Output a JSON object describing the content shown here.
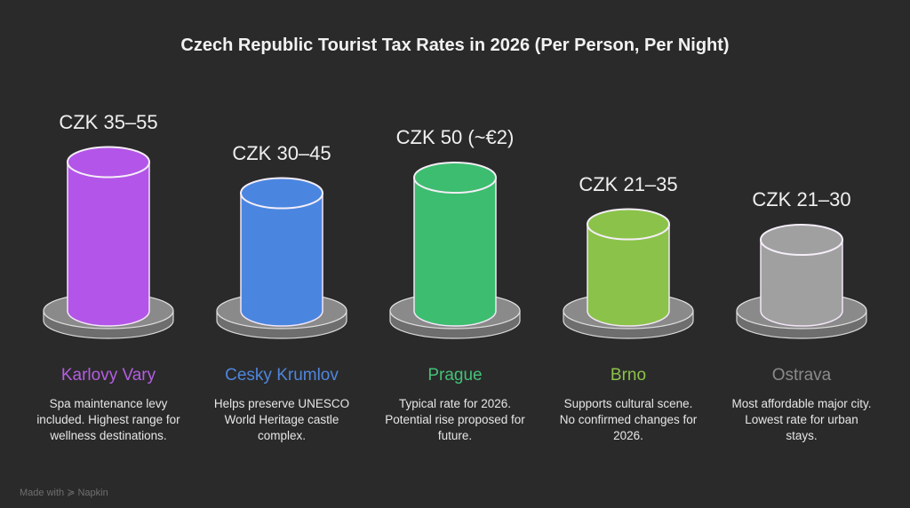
{
  "chart_data": {
    "type": "bar",
    "title": "Czech Republic Tourist Tax Rates in 2026 (Per Person, Per Night)",
    "categories": [
      "Karlovy Vary",
      "Cesky Krumlov",
      "Prague",
      "Brno",
      "Ostrava"
    ],
    "series": [
      {
        "values": [
          [
            35,
            55
          ],
          [
            30,
            45
          ],
          [
            50,
            50
          ],
          [
            21,
            35
          ],
          [
            21,
            30
          ]
        ]
      }
    ],
    "value_labels": [
      "CZK 35–55",
      "CZK 30–45",
      "CZK 50 (~€2)",
      "CZK 21–35",
      "CZK 21–30"
    ],
    "descriptions": [
      "Spa maintenance levy included. Highest range for wellness destinations.",
      "Helps preserve UNESCO World Heritage castle complex.",
      "Typical rate for 2026. Potential rise proposed for future.",
      "Supports cultural scene. No confirmed changes for 2026.",
      "Most affordable major city. Lowest rate for urban stays."
    ],
    "colors": [
      "#b355e8",
      "#4a86e0",
      "#3dbd6f",
      "#8bc34a",
      "#a0a0a0"
    ],
    "label_colors": [
      "#b45ee0",
      "#4f86dc",
      "#44c077",
      "#8cc24a",
      "#8a8a8a"
    ],
    "unit": "CZK"
  },
  "footer": "Made with ≽ Napkin"
}
